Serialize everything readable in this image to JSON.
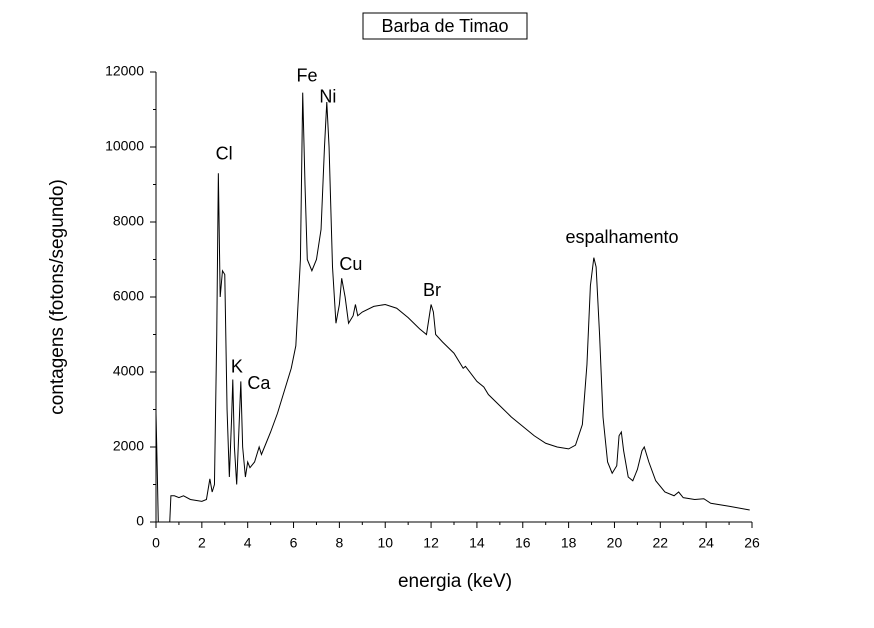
{
  "chart_data": {
    "type": "line",
    "title": "Barba de Timao",
    "x_label": "energia (keV)",
    "y_label": "contagens (fotons/segundo)",
    "color": "#000000",
    "x": [
      0,
      0.05,
      0.1,
      0.6,
      0.65,
      0.8,
      1.0,
      1.2,
      1.5,
      2.0,
      2.2,
      2.35,
      2.45,
      2.55,
      2.65,
      2.72,
      2.8,
      2.9,
      3.0,
      3.1,
      3.2,
      3.3,
      3.35,
      3.42,
      3.52,
      3.62,
      3.7,
      3.78,
      3.9,
      4.0,
      4.1,
      4.3,
      4.5,
      4.6,
      4.8,
      5.0,
      5.3,
      5.6,
      5.9,
      6.1,
      6.3,
      6.4,
      6.5,
      6.6,
      6.8,
      7.0,
      7.2,
      7.35,
      7.45,
      7.55,
      7.7,
      7.85,
      8.0,
      8.1,
      8.25,
      8.4,
      8.6,
      8.7,
      8.8,
      9.0,
      9.5,
      10.0,
      10.5,
      11.0,
      11.5,
      11.8,
      12.0,
      12.1,
      12.2,
      12.5,
      13.0,
      13.4,
      13.5,
      14.0,
      14.3,
      14.5,
      15.0,
      15.5,
      16.0,
      16.5,
      17.0,
      17.5,
      18.0,
      18.3,
      18.6,
      18.8,
      18.95,
      19.1,
      19.2,
      19.35,
      19.5,
      19.7,
      19.9,
      20.1,
      20.2,
      20.3,
      20.4,
      20.6,
      20.8,
      21.0,
      21.2,
      21.3,
      21.5,
      21.8,
      22.2,
      22.6,
      22.8,
      23.0,
      23.5,
      23.9,
      24.2,
      25.0,
      25.9
    ],
    "values": [
      2900,
      1500,
      0,
      0,
      700,
      700,
      650,
      700,
      600,
      550,
      600,
      1150,
      800,
      1000,
      5000,
      9300,
      6000,
      6700,
      6600,
      3000,
      1200,
      2800,
      3800,
      2000,
      1000,
      2500,
      3750,
      2000,
      1200,
      1600,
      1450,
      1600,
      2000,
      1800,
      2100,
      2400,
      2900,
      3500,
      4100,
      4700,
      7000,
      11450,
      9000,
      7000,
      6700,
      7000,
      7800,
      10000,
      11200,
      10000,
      6800,
      5300,
      5800,
      6500,
      6000,
      5300,
      5500,
      5800,
      5500,
      5600,
      5750,
      5800,
      5700,
      5450,
      5150,
      5000,
      5800,
      5600,
      5000,
      4800,
      4500,
      4100,
      4150,
      3750,
      3600,
      3400,
      3100,
      2800,
      2550,
      2300,
      2100,
      2000,
      1950,
      2050,
      2600,
      4200,
      6300,
      7050,
      6800,
      5000,
      2800,
      1600,
      1300,
      1500,
      2300,
      2400,
      1900,
      1200,
      1100,
      1400,
      1900,
      2000,
      1600,
      1100,
      800,
      700,
      800,
      650,
      600,
      620,
      500,
      420,
      320
    ],
    "xlim": [
      0,
      26
    ],
    "xticks": [
      0,
      2,
      4,
      6,
      8,
      10,
      12,
      14,
      16,
      18,
      20,
      22,
      24,
      26
    ],
    "ylim": [
      0,
      12000
    ],
    "yticks": [
      0,
      2000,
      4000,
      6000,
      8000,
      10000,
      12000
    ],
    "annotations": [
      {
        "text": "Cl",
        "x": 2.97,
        "y": 9787
      },
      {
        "text": "K",
        "x": 3.53,
        "y": 4107
      },
      {
        "text": "Ca",
        "x": 4.49,
        "y": 3680
      },
      {
        "text": "Fe",
        "x": 6.59,
        "y": 11867
      },
      {
        "text": "Ni",
        "x": 7.5,
        "y": 11307
      },
      {
        "text": "Cu",
        "x": 8.5,
        "y": 6853
      },
      {
        "text": "Br",
        "x": 12.04,
        "y": 6160
      },
      {
        "text": "espalhamento",
        "x": 20.33,
        "y": 7573
      }
    ]
  }
}
